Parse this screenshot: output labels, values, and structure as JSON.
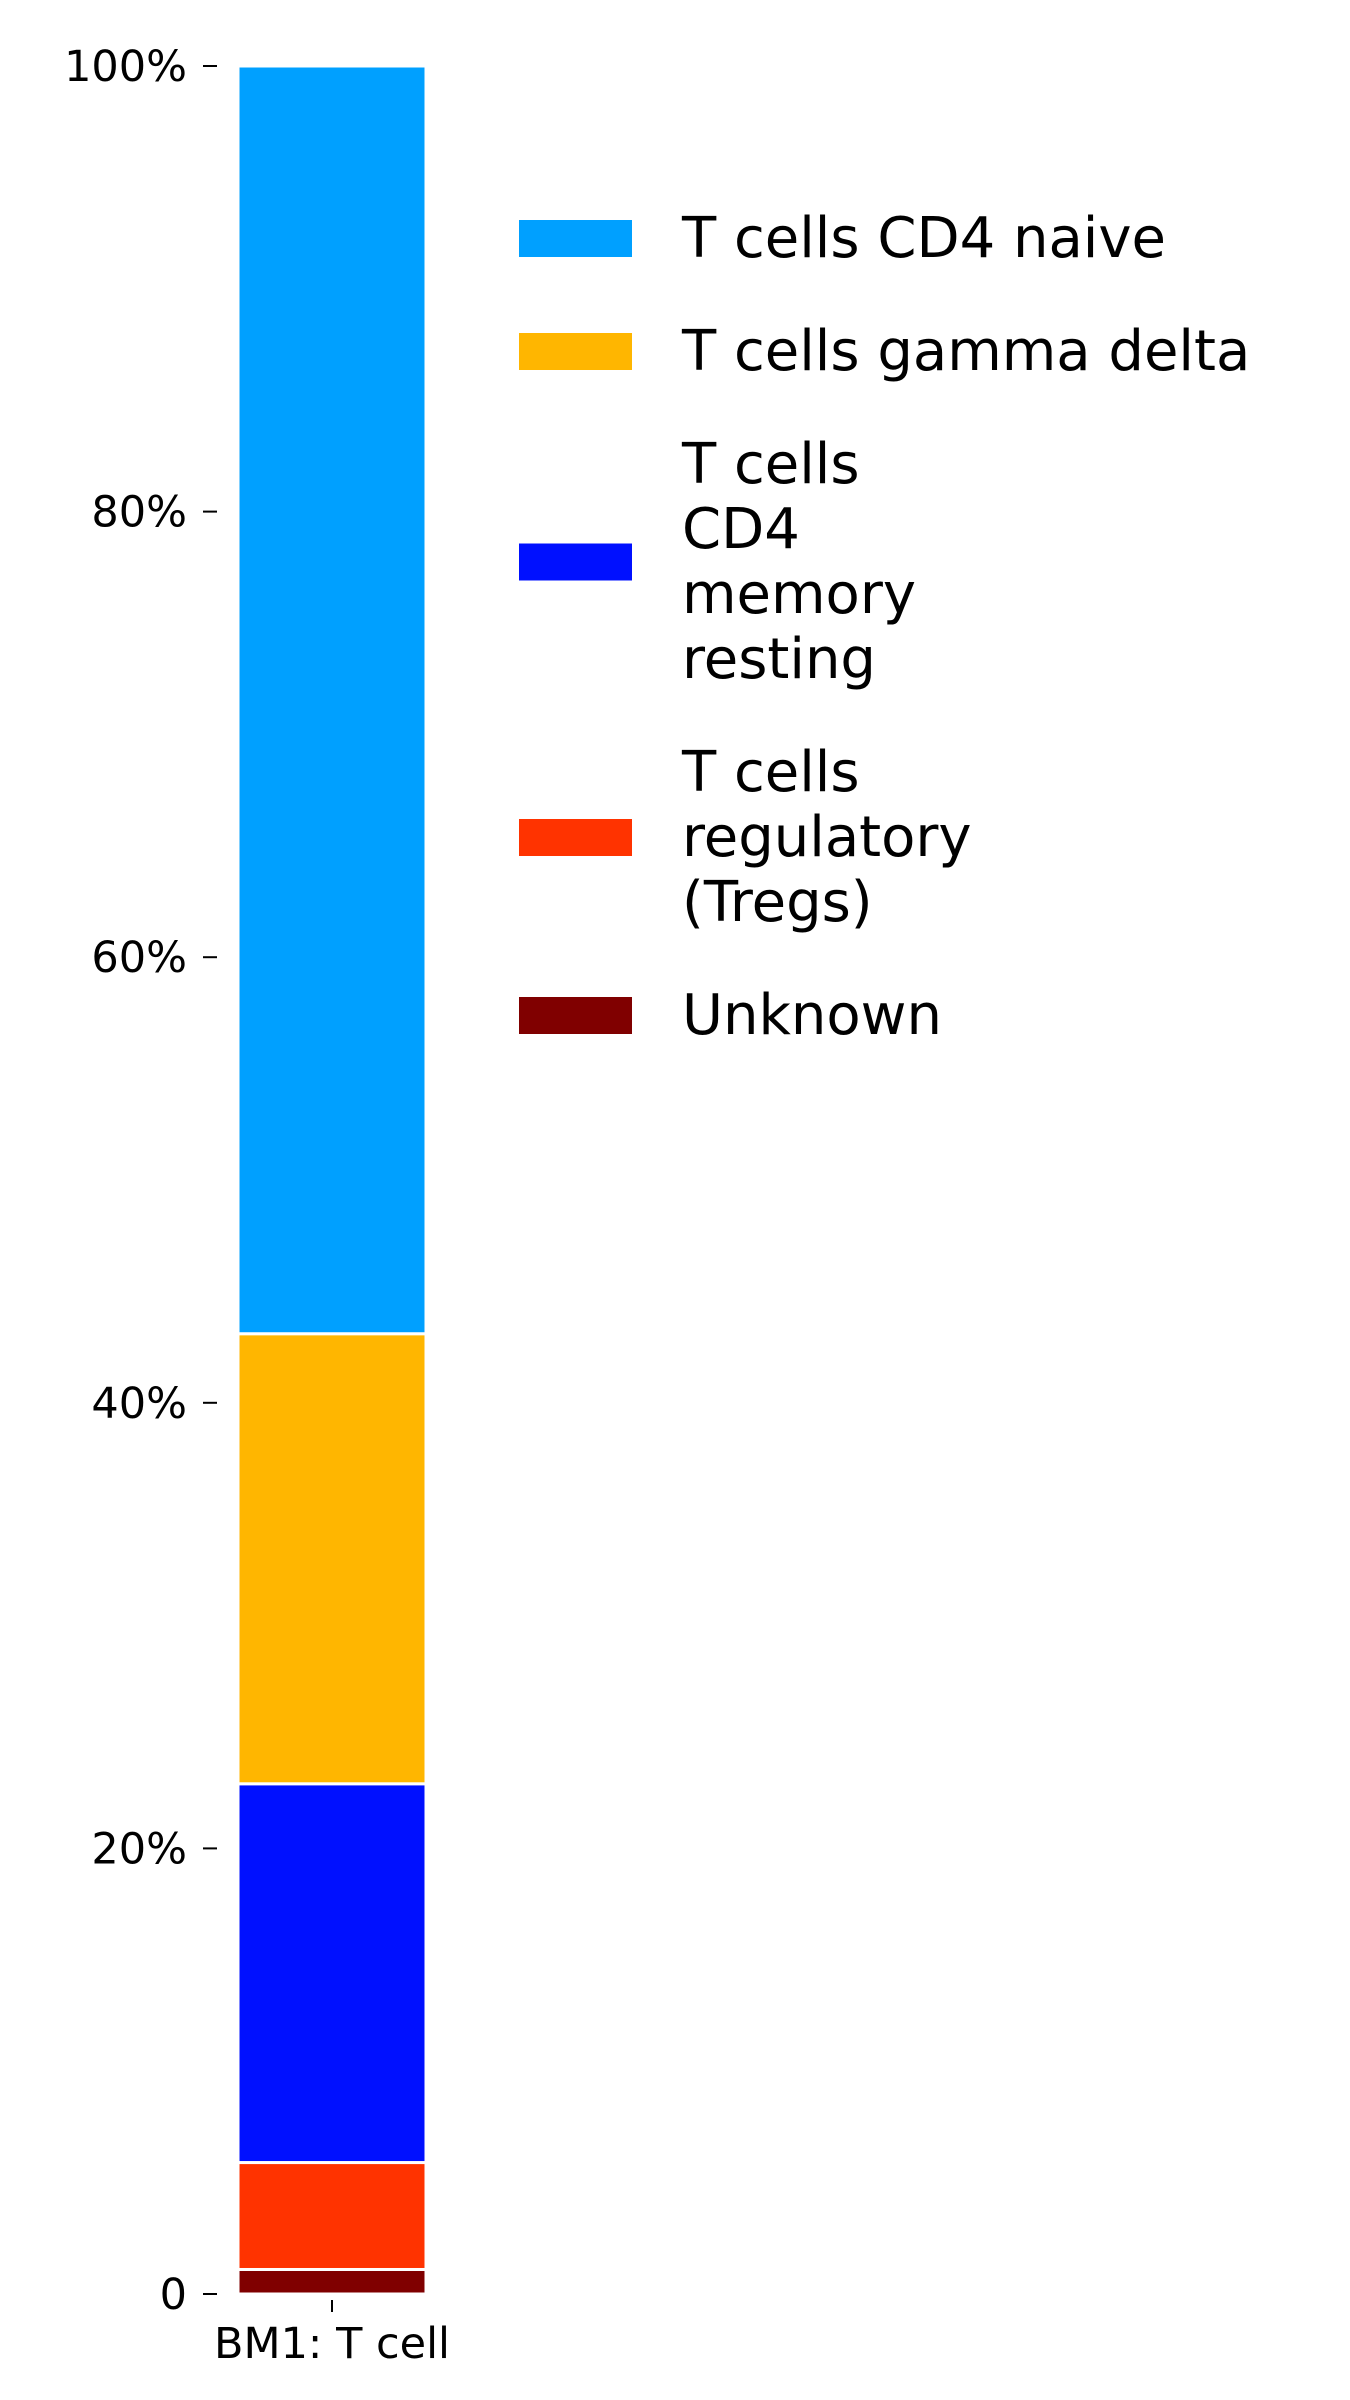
{
  "chart_data": {
    "type": "bar",
    "stacked": true,
    "normalized": true,
    "categories": [
      "BM1: T cell"
    ],
    "ylim": [
      0,
      100
    ],
    "y_ticks": [
      {
        "value": 0,
        "label": "0"
      },
      {
        "value": 20,
        "label": "20%"
      },
      {
        "value": 40,
        "label": "40%"
      },
      {
        "value": 60,
        "label": "60%"
      },
      {
        "value": 80,
        "label": "80%"
      },
      {
        "value": 100,
        "label": "100%"
      }
    ],
    "series": [
      {
        "name": "Unknown",
        "values": [
          1.1
        ],
        "color": "#800000"
      },
      {
        "name": "T cells regulatory (Tregs)",
        "values": [
          4.8
        ],
        "color": "#ff3300"
      },
      {
        "name": "T cells CD4 memory resting",
        "values": [
          17.0
        ],
        "color": "#0010ff"
      },
      {
        "name": "T cells gamma delta",
        "values": [
          20.2
        ],
        "color": "#ffb600"
      },
      {
        "name": "T cells CD4 naive",
        "values": [
          56.9
        ],
        "color": "#00a0ff"
      }
    ],
    "legend": {
      "placement": "right",
      "entries": [
        {
          "lines": [
            "T cells CD4 naive"
          ],
          "color": "#00a0ff"
        },
        {
          "lines": [
            "T cells gamma delta"
          ],
          "color": "#ffb600"
        },
        {
          "lines": [
            "T cells",
            "CD4",
            "memory",
            "resting"
          ],
          "color": "#0010ff"
        },
        {
          "lines": [
            "T cells",
            "regulatory",
            "(Tregs)"
          ],
          "color": "#ff3300"
        },
        {
          "lines": [
            "Unknown"
          ],
          "color": "#800000"
        }
      ]
    },
    "grid": false,
    "title": "",
    "xlabel": "",
    "ylabel": ""
  }
}
